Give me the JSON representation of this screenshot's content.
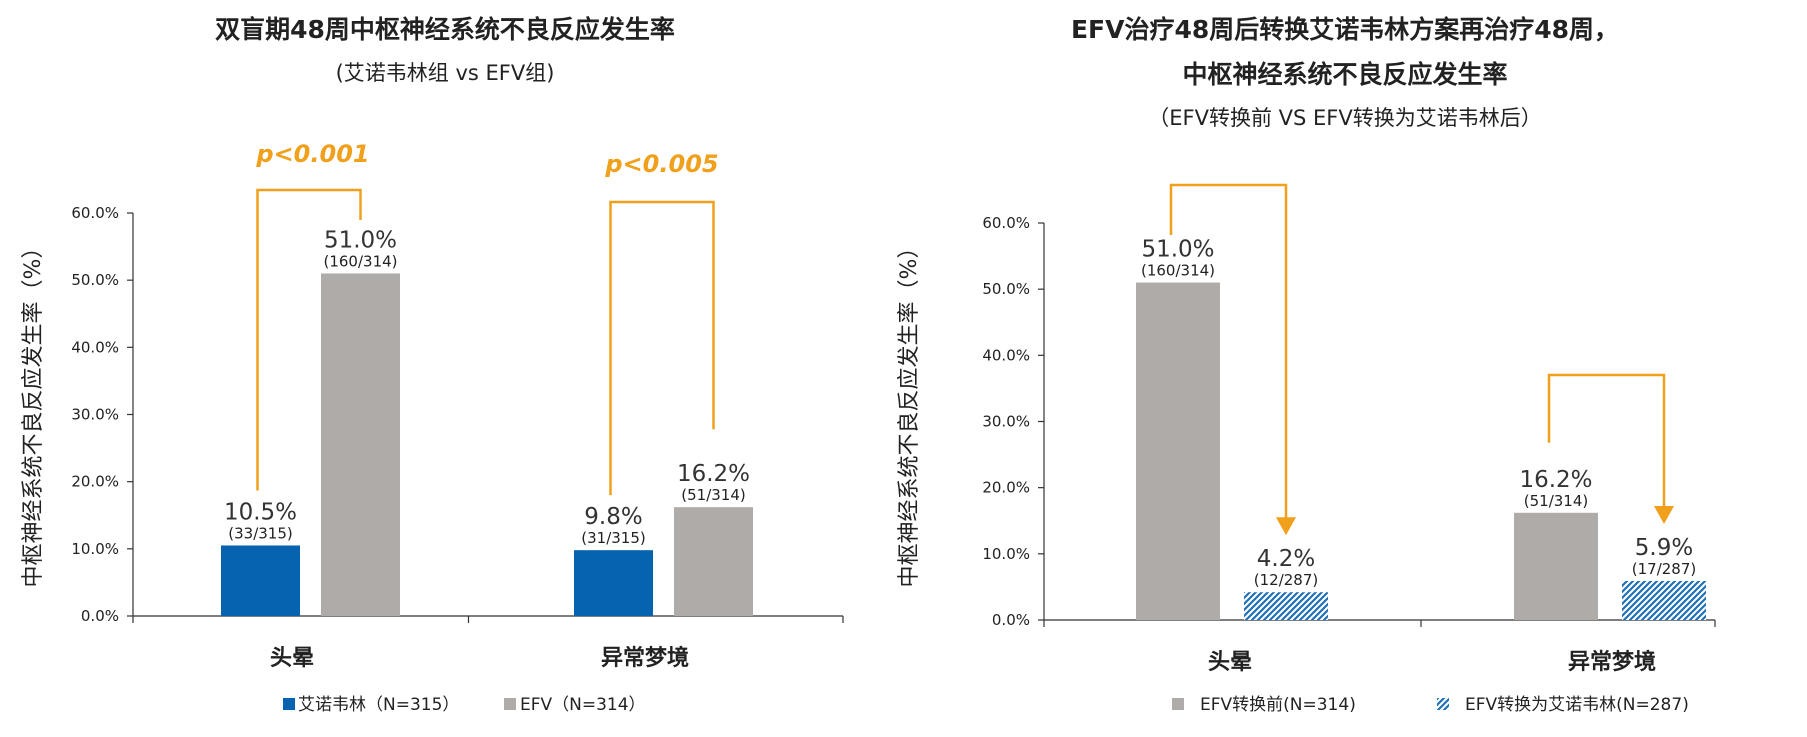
{
  "chart_data": [
    {
      "type": "bar",
      "title": "双盲期48周中枢神经系统不良反应发生率",
      "subtitle": "(艾诺韦林组 vs EFV组)",
      "ylabel": "中枢神经系统不良反应发生率（%）",
      "ylim": [
        0,
        60
      ],
      "yticks": [
        "0.0%",
        "10.0%",
        "20.0%",
        "30.0%",
        "40.0%",
        "50.0%",
        "60.0%"
      ],
      "categories": [
        "头晕",
        "异常梦境"
      ],
      "series": [
        {
          "name": "艾诺韦林（N=315）",
          "values": [
            10.5,
            9.8
          ],
          "labels": [
            "10.5%",
            "9.8%"
          ],
          "counts": [
            "(33/315)",
            "(31/315)"
          ],
          "color": "#0563b0",
          "pattern": "solid"
        },
        {
          "name": "EFV（N=314）",
          "values": [
            51.0,
            16.2
          ],
          "labels": [
            "51.0%",
            "16.2%"
          ],
          "counts": [
            "(160/314)",
            "(51/314)"
          ],
          "color": "#aeaba9",
          "pattern": "solid"
        }
      ],
      "annotations": [
        "p<0.001",
        "p<0.005"
      ],
      "legend_position": "bottom",
      "grid": false
    },
    {
      "type": "bar",
      "title": "EFV治疗48周后转换艾诺韦林方案再治疗48周，",
      "title_line2": "中枢神经系统不良反应发生率",
      "subtitle": "（EFV转换前 VS EFV转换为艾诺韦林后）",
      "ylabel": "中枢神经系统不良反应发生率（%）",
      "ylim": [
        0,
        60
      ],
      "yticks": [
        "0.0%",
        "10.0%",
        "20.0%",
        "30.0%",
        "40.0%",
        "50.0%",
        "60.0%"
      ],
      "categories": [
        "头晕",
        "异常梦境"
      ],
      "series": [
        {
          "name": "EFV转换前(N=314)",
          "values": [
            51.0,
            16.2
          ],
          "labels": [
            "51.0%",
            "16.2%"
          ],
          "counts": [
            "(160/314)",
            "(51/314)"
          ],
          "color": "#aeaba9",
          "pattern": "solid"
        },
        {
          "name": "EFV转换为艾诺韦林(N=287)",
          "values": [
            4.2,
            5.9
          ],
          "labels": [
            "4.2%",
            "5.9%"
          ],
          "counts": [
            "(12/287)",
            "(17/287)"
          ],
          "color": "#1f6fb5",
          "pattern": "hatch"
        }
      ],
      "legend_position": "bottom",
      "grid": false
    }
  ],
  "colors": {
    "accent": "#f0a01b",
    "axis": "#333333"
  }
}
